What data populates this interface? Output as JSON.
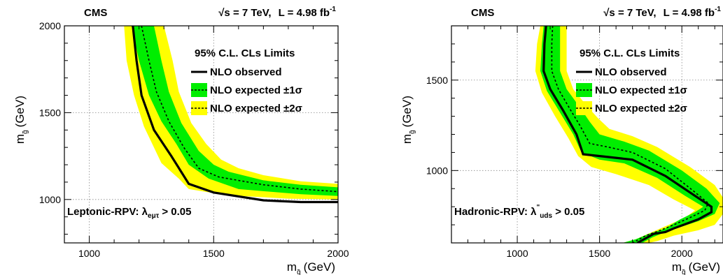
{
  "chart_data": [
    {
      "type": "line",
      "header_left": "CMS",
      "header_right_sqrt": "√s = 7 TeV,",
      "header_right_lumi": "L = 4.98 fb",
      "header_right_lumi_sup": "-1",
      "legend_title": "95% C.L. CLs Limits",
      "legend_labels": [
        "NLO observed",
        "NLO expected ±1σ",
        "NLO expected ±2σ"
      ],
      "annotation": "Leptonic-RPV: λ",
      "annotation_sub": "eμτ",
      "annotation_tail": " > 0.05",
      "xlabel": "m",
      "xlabel_sub": "q̃",
      "xlabel_unit": "(GeV)",
      "ylabel": "m",
      "ylabel_sub": "g̃",
      "ylabel_unit": "(GeV)",
      "xlim": [
        900,
        2000
      ],
      "ylim": [
        750,
        2000
      ],
      "xticks": [
        1000,
        1500,
        2000
      ],
      "yticks": [
        1000,
        1500,
        2000
      ],
      "grid": true,
      "legend_position": "top-right",
      "colors": {
        "observed": "#000000",
        "expected": "#000000",
        "band1": "#00ee00",
        "band2": "#ffff00"
      },
      "series": [
        {
          "name": "NLO observed",
          "points": [
            [
              1175,
              2000
            ],
            [
              1190,
              1800
            ],
            [
              1210,
              1600
            ],
            [
              1260,
              1400
            ],
            [
              1330,
              1250
            ],
            [
              1400,
              1090
            ],
            [
              1500,
              1040
            ],
            [
              1700,
              995
            ],
            [
              1850,
              985
            ],
            [
              2000,
              985
            ]
          ]
        },
        {
          "name": "NLO expected ±1σ",
          "points": [
            [
              1210,
              2000
            ],
            [
              1240,
              1800
            ],
            [
              1270,
              1620
            ],
            [
              1320,
              1450
            ],
            [
              1380,
              1300
            ],
            [
              1440,
              1180
            ],
            [
              1520,
              1130
            ],
            [
              1700,
              1085
            ],
            [
              1850,
              1060
            ],
            [
              2000,
              1045
            ]
          ]
        }
      ],
      "band1_upper": [
        [
          1260,
          2000
        ],
        [
          1290,
          1800
        ],
        [
          1320,
          1620
        ],
        [
          1370,
          1440
        ],
        [
          1440,
          1280
        ],
        [
          1500,
          1200
        ],
        [
          1560,
          1160
        ],
        [
          1700,
          1110
        ],
        [
          1850,
          1085
        ],
        [
          2000,
          1070
        ]
      ],
      "band1_lower": [
        [
          1170,
          2000
        ],
        [
          1200,
          1800
        ],
        [
          1240,
          1600
        ],
        [
          1290,
          1450
        ],
        [
          1350,
          1320
        ],
        [
          1400,
          1200
        ],
        [
          1480,
          1120
        ],
        [
          1600,
          1060
        ],
        [
          1850,
          1030
        ],
        [
          2000,
          1020
        ]
      ],
      "band2_upper": [
        [
          1300,
          2000
        ],
        [
          1335,
          1800
        ],
        [
          1360,
          1620
        ],
        [
          1410,
          1440
        ],
        [
          1470,
          1320
        ],
        [
          1530,
          1230
        ],
        [
          1600,
          1180
        ],
        [
          1700,
          1140
        ],
        [
          1850,
          1105
        ],
        [
          2000,
          1090
        ]
      ],
      "band2_lower": [
        [
          1140,
          2000
        ],
        [
          1150,
          1800
        ],
        [
          1180,
          1600
        ],
        [
          1220,
          1420
        ],
        [
          1290,
          1210
        ],
        [
          1360,
          1120
        ],
        [
          1400,
          1060
        ],
        [
          1550,
          1025
        ],
        [
          1800,
          1005
        ],
        [
          2000,
          1000
        ]
      ]
    },
    {
      "type": "line",
      "header_left": "CMS",
      "header_right_sqrt": "√s = 7 TeV,",
      "header_right_lumi": "L = 4.98 fb",
      "header_right_lumi_sup": "-1",
      "legend_title": "95% C.L. CLs Limits",
      "legend_labels": [
        "NLO observed",
        "NLO expected ±1σ",
        "NLO expected ±2σ"
      ],
      "annotation": "Hadronic-RPV: λ",
      "annotation_sup": "\"",
      "annotation_sub": "uds",
      "annotation_tail": " > 0.05",
      "xlabel": "m",
      "xlabel_sub": "q̃",
      "xlabel_unit": "(GeV)",
      "ylabel": "m",
      "ylabel_sub": "g̃",
      "ylabel_unit": "(GeV)",
      "xlim": [
        600,
        2250
      ],
      "ylim": [
        600,
        1800
      ],
      "xticks": [
        1000,
        1500,
        2000
      ],
      "yticks": [
        1000,
        1500
      ],
      "grid": true,
      "legend_position": "top-right",
      "colors": {
        "observed": "#000000",
        "expected": "#000000",
        "band1": "#00ee00",
        "band2": "#ffff00"
      },
      "series": [
        {
          "name": "NLO observed",
          "points": [
            [
              1175,
              1800
            ],
            [
              1165,
              1700
            ],
            [
              1160,
              1550
            ],
            [
              1200,
              1450
            ],
            [
              1280,
              1330
            ],
            [
              1360,
              1200
            ],
            [
              1400,
              1090
            ],
            [
              1550,
              1075
            ],
            [
              1700,
              1060
            ],
            [
              1900,
              970
            ],
            [
              2080,
              860
            ],
            [
              2180,
              800
            ],
            [
              2180,
              770
            ],
            [
              2100,
              730
            ],
            [
              1950,
              680
            ],
            [
              1900,
              660
            ],
            [
              1830,
              650
            ],
            [
              1730,
              600
            ]
          ]
        },
        {
          "name": "NLO expected ±1σ",
          "points": [
            [
              1215,
              1800
            ],
            [
              1210,
              1700
            ],
            [
              1210,
              1550
            ],
            [
              1250,
              1450
            ],
            [
              1320,
              1340
            ],
            [
              1380,
              1250
            ],
            [
              1440,
              1150
            ],
            [
              1550,
              1130
            ],
            [
              1700,
              1100
            ],
            [
              1900,
              1010
            ],
            [
              2080,
              880
            ],
            [
              2160,
              820
            ],
            [
              2140,
              780
            ],
            [
              2050,
              740
            ],
            [
              1950,
              700
            ],
            [
              1870,
              670
            ],
            [
              1780,
              640
            ],
            [
              1700,
              600
            ]
          ]
        }
      ],
      "band1_upper": [
        [
          1260,
          1800
        ],
        [
          1260,
          1700
        ],
        [
          1260,
          1550
        ],
        [
          1300,
          1450
        ],
        [
          1380,
          1350
        ],
        [
          1440,
          1270
        ],
        [
          1500,
          1200
        ],
        [
          1650,
          1160
        ],
        [
          1800,
          1110
        ],
        [
          2000,
          1000
        ],
        [
          2150,
          900
        ],
        [
          2230,
          820
        ],
        [
          2200,
          760
        ],
        [
          2100,
          720
        ],
        [
          2000,
          690
        ],
        [
          1900,
          660
        ],
        [
          1820,
          630
        ],
        [
          1760,
          600
        ]
      ],
      "band1_lower": [
        [
          1160,
          1800
        ],
        [
          1150,
          1700
        ],
        [
          1140,
          1550
        ],
        [
          1180,
          1440
        ],
        [
          1260,
          1320
        ],
        [
          1340,
          1200
        ],
        [
          1390,
          1100
        ],
        [
          1500,
          1060
        ],
        [
          1650,
          1040
        ],
        [
          1850,
          960
        ],
        [
          2020,
          860
        ],
        [
          2130,
          800
        ],
        [
          2080,
          770
        ],
        [
          1990,
          730
        ],
        [
          1900,
          680
        ],
        [
          1800,
          650
        ],
        [
          1720,
          620
        ],
        [
          1640,
          600
        ]
      ],
      "band2_upper": [
        [
          1300,
          1800
        ],
        [
          1300,
          1700
        ],
        [
          1300,
          1550
        ],
        [
          1340,
          1450
        ],
        [
          1420,
          1360
        ],
        [
          1490,
          1290
        ],
        [
          1560,
          1230
        ],
        [
          1700,
          1190
        ],
        [
          1850,
          1130
        ],
        [
          2050,
          1020
        ],
        [
          2200,
          920
        ],
        [
          2250,
          850
        ],
        [
          2250,
          760
        ],
        [
          2200,
          700
        ],
        [
          2100,
          670
        ],
        [
          1950,
          640
        ],
        [
          1850,
          610
        ],
        [
          1800,
          600
        ]
      ],
      "band2_lower": [
        [
          1140,
          1800
        ],
        [
          1120,
          1700
        ],
        [
          1110,
          1550
        ],
        [
          1150,
          1430
        ],
        [
          1230,
          1300
        ],
        [
          1310,
          1180
        ],
        [
          1370,
          1080
        ],
        [
          1450,
          1020
        ],
        [
          1600,
          980
        ],
        [
          1800,
          920
        ],
        [
          1950,
          840
        ],
        [
          2080,
          780
        ],
        [
          2020,
          740
        ],
        [
          1920,
          700
        ],
        [
          1820,
          660
        ],
        [
          1720,
          620
        ],
        [
          1640,
          600
        ],
        [
          1600,
          600
        ]
      ]
    }
  ]
}
